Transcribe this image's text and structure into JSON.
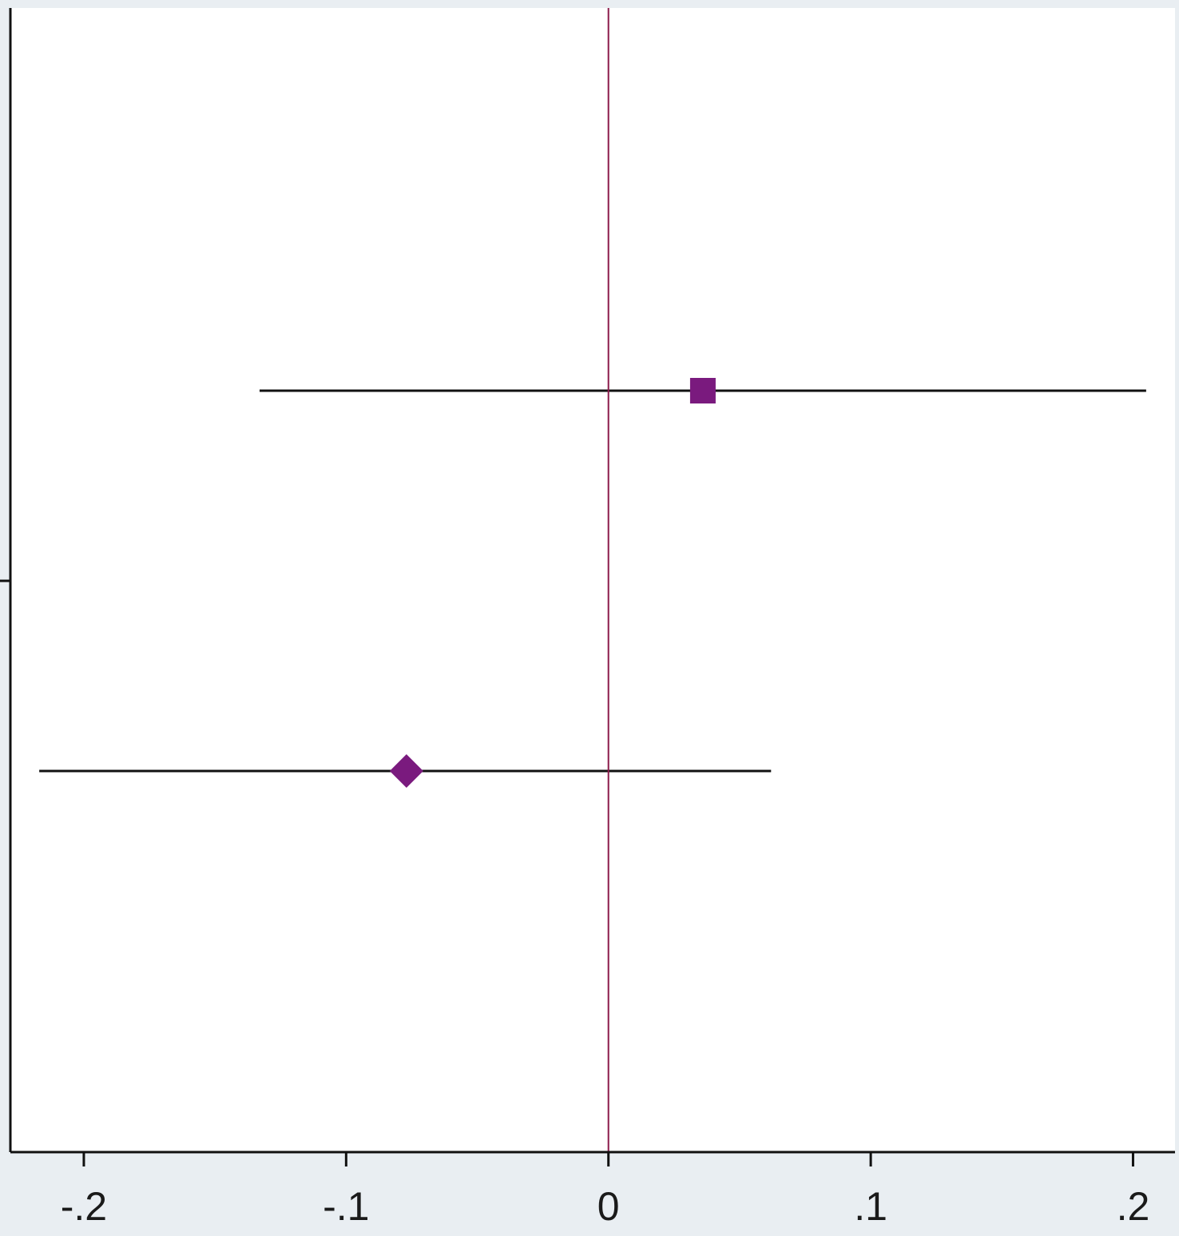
{
  "chart_data": {
    "type": "forest",
    "x_ticks": [
      {
        "value": -0.2,
        "label": "-.2"
      },
      {
        "value": -0.1,
        "label": "-.1"
      },
      {
        "value": 0,
        "label": "0"
      },
      {
        "value": 0.1,
        "label": ".1"
      },
      {
        "value": 0.2,
        "label": ".2"
      }
    ],
    "xlim": [
      -0.228,
      0.216
    ],
    "reference_line": {
      "x": 0,
      "color": "#8b1a4a"
    },
    "points": [
      {
        "estimate": 0.036,
        "ci_low": -0.133,
        "ci_high": 0.205,
        "marker": "square",
        "position": 1
      },
      {
        "estimate": -0.077,
        "ci_low": -0.217,
        "ci_high": 0.062,
        "marker": "diamond",
        "position": 2
      }
    ],
    "marker_color": "#7a1a7e",
    "ci_color": "#111111",
    "grid": false,
    "y_ticks_unlabeled": 1
  }
}
